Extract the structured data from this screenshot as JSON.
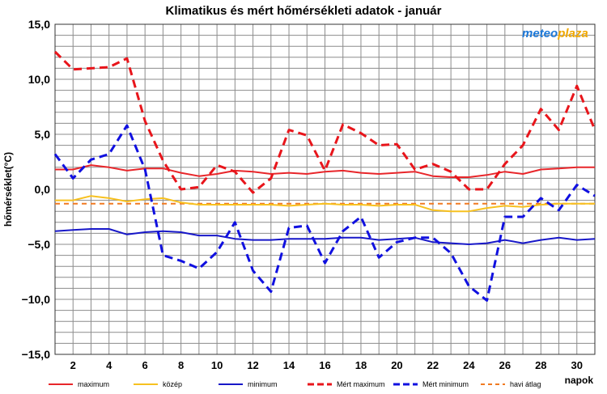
{
  "chart_data": {
    "type": "line",
    "title": "Klimatikus és mért hőmérsékleti adatok - január",
    "xlabel": "napok",
    "ylabel": "hőmérséklet(°C)",
    "xlim": [
      1,
      31
    ],
    "ylim": [
      -15,
      15
    ],
    "x_ticks": [
      2,
      4,
      6,
      8,
      10,
      12,
      14,
      16,
      18,
      20,
      22,
      24,
      26,
      28,
      30
    ],
    "y_ticks": [
      15,
      10,
      5,
      0,
      -5,
      -10,
      -15
    ],
    "y_tick_labels": [
      "15,0",
      "10,0",
      "5,0",
      "0,0",
      "−5,0",
      "−10,0",
      "−15,0"
    ],
    "grid": true,
    "legend_position": "bottom",
    "logo": {
      "part1": "meteo",
      "part2": "plaza"
    },
    "x": [
      1,
      2,
      3,
      4,
      5,
      6,
      7,
      8,
      9,
      10,
      11,
      12,
      13,
      14,
      15,
      16,
      17,
      18,
      19,
      20,
      21,
      22,
      23,
      24,
      25,
      26,
      27,
      28,
      29,
      30,
      31
    ],
    "series": [
      {
        "name": "maximum",
        "color": "#e8262a",
        "style": "solid",
        "values": [
          1.8,
          1.8,
          2.2,
          2.0,
          1.7,
          1.9,
          1.9,
          1.5,
          1.2,
          1.4,
          1.7,
          1.6,
          1.4,
          1.5,
          1.4,
          1.6,
          1.7,
          1.5,
          1.4,
          1.5,
          1.6,
          1.2,
          1.1,
          1.1,
          1.3,
          1.6,
          1.4,
          1.8,
          1.9,
          2.0,
          2.0
        ]
      },
      {
        "name": "közép",
        "color": "#f7c120",
        "style": "solid",
        "values": [
          -1.0,
          -1.0,
          -0.6,
          -0.8,
          -1.1,
          -0.9,
          -0.8,
          -1.2,
          -1.4,
          -1.4,
          -1.4,
          -1.4,
          -1.4,
          -1.5,
          -1.4,
          -1.3,
          -1.4,
          -1.4,
          -1.5,
          -1.4,
          -1.4,
          -1.9,
          -2.0,
          -2.0,
          -1.7,
          -1.5,
          -1.6,
          -1.4,
          -1.3,
          -1.3,
          -1.3
        ]
      },
      {
        "name": "minimum",
        "color": "#1717c8",
        "style": "solid",
        "values": [
          -3.8,
          -3.7,
          -3.6,
          -3.6,
          -4.1,
          -3.9,
          -3.8,
          -3.9,
          -4.2,
          -4.2,
          -4.5,
          -4.6,
          -4.6,
          -4.5,
          -4.5,
          -4.5,
          -4.4,
          -4.4,
          -4.6,
          -4.5,
          -4.4,
          -4.8,
          -4.9,
          -5.0,
          -4.9,
          -4.6,
          -4.9,
          -4.6,
          -4.4,
          -4.6,
          -4.5
        ]
      },
      {
        "name": "Mért maximum",
        "color": "#e8151b",
        "style": "dashed",
        "values": [
          12.5,
          10.9,
          11.0,
          11.1,
          11.9,
          6.2,
          2.6,
          0.0,
          0.2,
          2.2,
          1.6,
          -0.3,
          1.0,
          5.4,
          4.9,
          1.7,
          5.9,
          5.1,
          4.0,
          4.1,
          1.8,
          2.3,
          1.6,
          0.0,
          0.0,
          2.3,
          4.0,
          7.3,
          5.4,
          9.4,
          5.4
        ]
      },
      {
        "name": "Mért minimum",
        "color": "#1010e0",
        "style": "dashed",
        "values": [
          3.2,
          1.0,
          2.7,
          3.2,
          5.8,
          1.8,
          -6.0,
          -6.5,
          -7.2,
          -5.7,
          -3.0,
          -7.4,
          -9.3,
          -3.5,
          -3.3,
          -6.7,
          -3.8,
          -2.5,
          -6.2,
          -4.8,
          -4.4,
          -4.4,
          -5.8,
          -8.8,
          -10.1,
          -2.5,
          -2.5,
          -0.8,
          -1.9,
          0.4,
          -0.6
        ]
      },
      {
        "name": "havi átlag",
        "color": "#f07a22",
        "style": "dotted",
        "values": [
          -1.3,
          -1.3,
          -1.3,
          -1.3,
          -1.3,
          -1.3,
          -1.3,
          -1.3,
          -1.3,
          -1.3,
          -1.3,
          -1.3,
          -1.3,
          -1.3,
          -1.3,
          -1.3,
          -1.3,
          -1.3,
          -1.3,
          -1.3,
          -1.3,
          -1.3,
          -1.3,
          -1.3,
          -1.3,
          -1.3,
          -1.3,
          -1.3,
          -1.3,
          -1.3,
          -1.3
        ]
      }
    ]
  }
}
